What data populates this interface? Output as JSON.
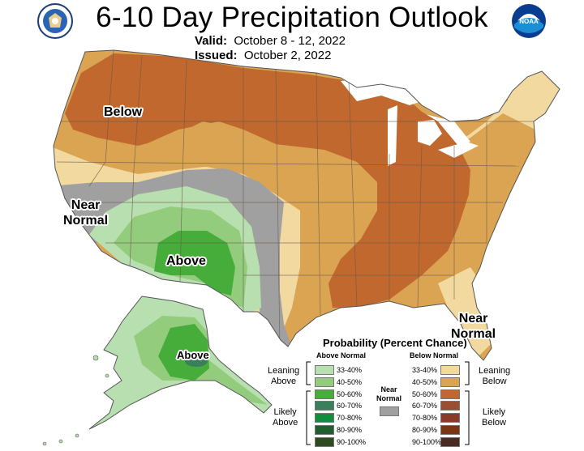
{
  "title": "6-10 Day Precipitation Outlook",
  "valid_label": "Valid:",
  "valid_value": "October 8 - 12, 2022",
  "issued_label": "Issued:",
  "issued_value": "October 2, 2022",
  "logos": {
    "left": "doc-seal-icon",
    "right": "noaa-logo-icon"
  },
  "map_labels": {
    "below": "Below",
    "near_normal_west_1": "Near",
    "near_normal_west_2": "Normal",
    "above": "Above",
    "near_normal_fl_1": "Near",
    "near_normal_fl_2": "Normal",
    "alaska_above": "Above"
  },
  "legend": {
    "title": "Probability (Percent Chance)",
    "above_head": "Above Normal",
    "below_head": "Below Normal",
    "near_normal_1": "Near",
    "near_normal_2": "Normal",
    "near_color": "#a0a0a0",
    "leaning_above_1": "Leaning",
    "leaning_above_2": "Above",
    "likely_above_1": "Likely",
    "likely_above_2": "Above",
    "leaning_below_1": "Leaning",
    "leaning_below_2": "Below",
    "likely_below_1": "Likely",
    "likely_below_2": "Below",
    "above": [
      {
        "label": "33-40%",
        "color": "#b7dfb0"
      },
      {
        "label": "40-50%",
        "color": "#94cc7e"
      },
      {
        "label": "50-60%",
        "color": "#46ad3b"
      },
      {
        "label": "60-70%",
        "color": "#3a7f5b"
      },
      {
        "label": "70-80%",
        "color": "#118d3c"
      },
      {
        "label": "80-90%",
        "color": "#205e2e"
      },
      {
        "label": "90-100%",
        "color": "#2c4b1e"
      }
    ],
    "below": [
      {
        "label": "33-40%",
        "color": "#f2d9a0"
      },
      {
        "label": "40-50%",
        "color": "#dba452"
      },
      {
        "label": "50-60%",
        "color": "#c0682e"
      },
      {
        "label": "60-70%",
        "color": "#9a4f33"
      },
      {
        "label": "70-80%",
        "color": "#8b3a2a"
      },
      {
        "label": "80-90%",
        "color": "#7a3513"
      },
      {
        "label": "90-100%",
        "color": "#4a2b22"
      }
    ]
  }
}
